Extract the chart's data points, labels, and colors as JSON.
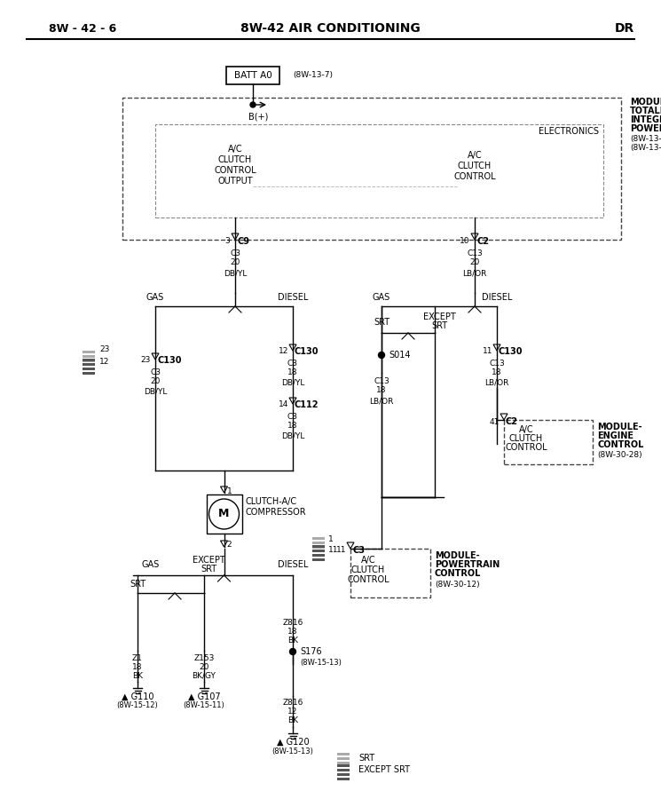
{
  "title_left": "8W - 42 - 6",
  "title_center": "8W-42 AIR CONDITIONING",
  "title_right": "DR",
  "bg_color": "#ffffff",
  "fig_width": 7.45,
  "fig_height": 8.91,
  "dpi": 100
}
